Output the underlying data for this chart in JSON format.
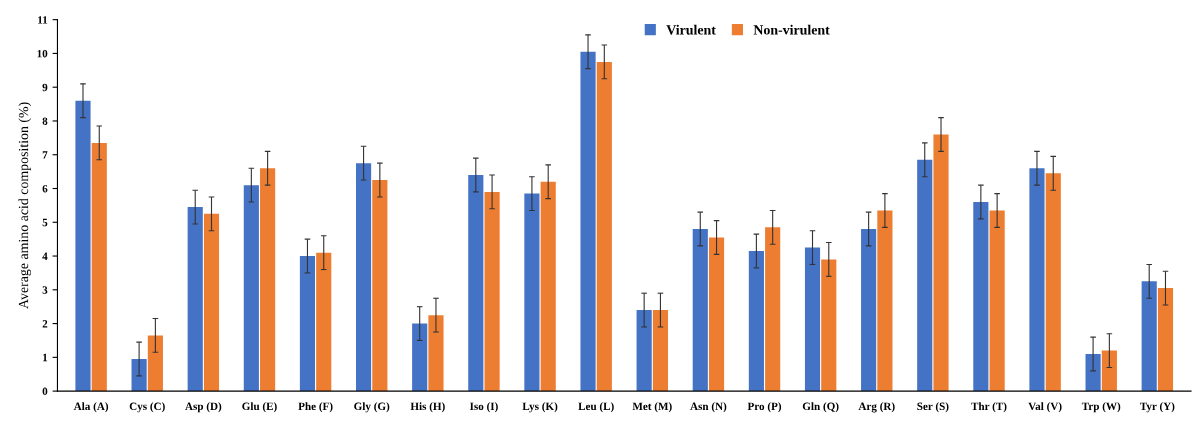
{
  "chart_data": {
    "type": "bar",
    "ylabel": "Average amino acid composition (%)",
    "categories": [
      "Ala (A)",
      "Cys (C)",
      "Asp (D)",
      "Glu (E)",
      "Phe (F)",
      "Gly (G)",
      "His (H)",
      "Iso (I)",
      "Lys (K)",
      "Leu (L)",
      "Met (M)",
      "Asn (N)",
      "Pro (P)",
      "Gln (Q)",
      "Arg (R)",
      "Ser (S)",
      "Thr (T)",
      "Val (V)",
      "Trp (W)",
      "Tyr (Y)"
    ],
    "series": [
      {
        "name": "Virulent",
        "color": "#4472c4",
        "values": [
          8.6,
          0.95,
          5.45,
          6.1,
          4.0,
          6.75,
          2.0,
          6.4,
          5.85,
          10.05,
          2.4,
          4.8,
          4.15,
          4.25,
          4.8,
          6.85,
          5.6,
          6.6,
          1.1,
          3.25
        ],
        "errors": [
          0.5,
          0.5,
          0.5,
          0.5,
          0.5,
          0.5,
          0.5,
          0.5,
          0.5,
          0.5,
          0.5,
          0.5,
          0.5,
          0.5,
          0.5,
          0.5,
          0.5,
          0.5,
          0.5,
          0.5
        ]
      },
      {
        "name": "Non-virulent",
        "color": "#ed7d31",
        "values": [
          7.35,
          1.65,
          5.25,
          6.6,
          4.1,
          6.25,
          2.25,
          5.9,
          6.2,
          9.75,
          2.4,
          4.55,
          4.85,
          3.9,
          5.35,
          7.6,
          5.35,
          6.45,
          1.2,
          3.05
        ],
        "errors": [
          0.5,
          0.5,
          0.5,
          0.5,
          0.5,
          0.5,
          0.5,
          0.5,
          0.5,
          0.5,
          0.5,
          0.5,
          0.5,
          0.5,
          0.5,
          0.5,
          0.5,
          0.5,
          0.5,
          0.5
        ]
      }
    ],
    "ylim": [
      0,
      11
    ],
    "yticks": [
      0,
      1,
      2,
      3,
      4,
      5,
      6,
      7,
      8,
      9,
      10,
      11
    ],
    "grid": false,
    "legend": "top"
  }
}
